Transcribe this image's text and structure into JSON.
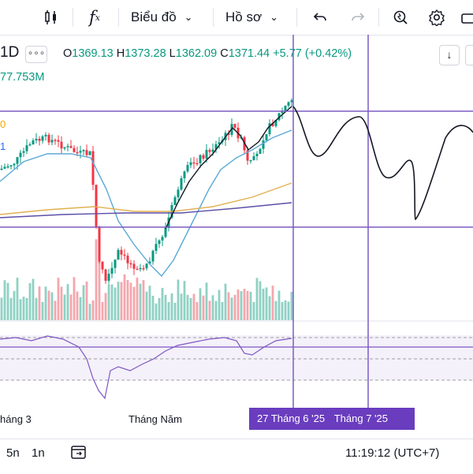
{
  "toolbar": {
    "chart_label": "Biểu đồ",
    "profile_label": "Hồ sơ",
    "fx_label": "f"
  },
  "legend": {
    "interval": "1D",
    "more": "∘∘∘",
    "o_label": "O",
    "o_value": "1369.13",
    "h_label": "H",
    "h_value": "1373.28",
    "l_label": "L",
    "l_value": "1362.09",
    "c_label": "C",
    "c_value": "1371.44",
    "change": "+5.77 (+0.42%)",
    "volume": "77.753M",
    "ind1_value": "0",
    "ind2_value": "1"
  },
  "xaxis": {
    "label_1": "háng 3",
    "label_2": "Tháng Năm",
    "badge_1": "27 Tháng 6 '25",
    "badge_2": "Tháng 7 '25"
  },
  "bottom": {
    "range_5n": "5n",
    "range_1n": "1n",
    "clock": "11:19:12 (UTC+7)"
  },
  "colors": {
    "up": "#089981",
    "down": "#f23645",
    "ma_fast": "#5aa9d6",
    "ma_slow": "#e0b050",
    "ma_long": "#5b4fa8",
    "drawing": "#7b5cc4",
    "rsi": "#7e57c2"
  },
  "chart_data": {
    "type": "candlestick",
    "series": [
      {
        "name": "candles"
      },
      {
        "name": "volume"
      },
      {
        "name": "rsi"
      }
    ]
  }
}
